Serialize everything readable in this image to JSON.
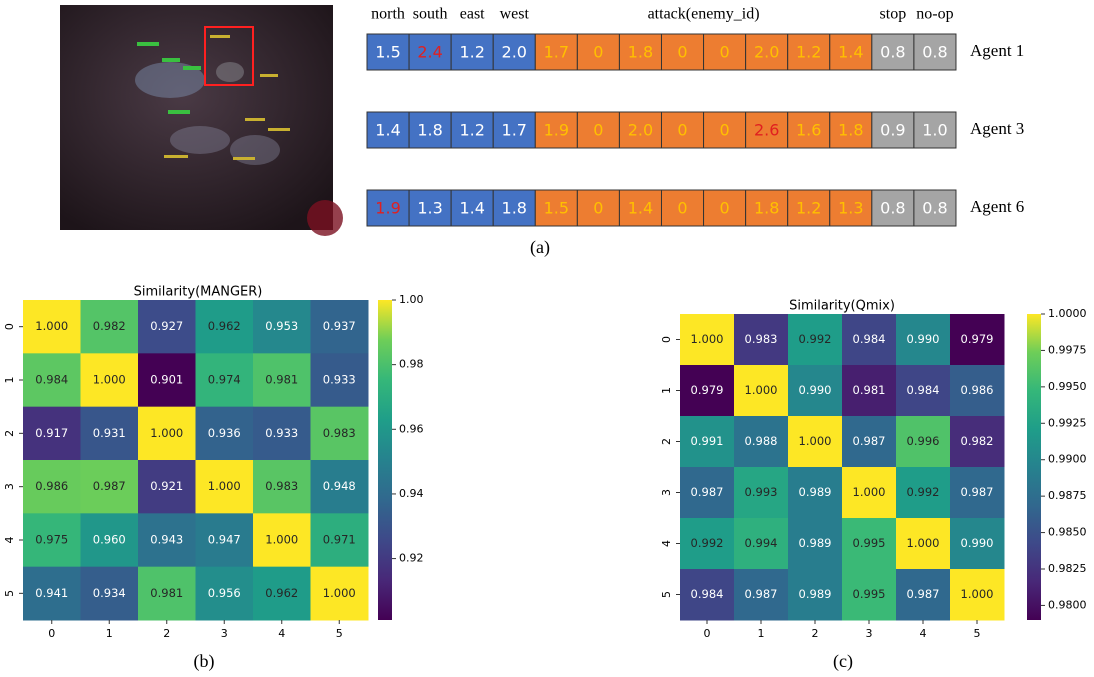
{
  "panel_a": {
    "caption": "(a)",
    "headers": [
      {
        "label": "north",
        "span": 1
      },
      {
        "label": "south",
        "span": 1
      },
      {
        "label": "east",
        "span": 1
      },
      {
        "label": "west",
        "span": 1
      },
      {
        "label": "attack(enemy_id)",
        "span": 8
      },
      {
        "label": "stop",
        "span": 1
      },
      {
        "label": "no-op",
        "span": 1
      }
    ],
    "cell_colors": [
      "#4472c4",
      "#4472c4",
      "#4472c4",
      "#4472c4",
      "#ed7d31",
      "#ed7d31",
      "#ed7d31",
      "#ed7d31",
      "#ed7d31",
      "#ed7d31",
      "#ed7d31",
      "#ed7d31",
      "#a5a5a5",
      "#a5a5a5"
    ],
    "text_colors": [
      "#ffffff",
      "#ffffff",
      "#ffffff",
      "#ffffff",
      "#ffc000",
      "#ffc000",
      "#ffc000",
      "#ffc000",
      "#ffc000",
      "#ffc000",
      "#ffc000",
      "#ffc000",
      "#ffffff",
      "#ffffff"
    ],
    "highlight_color": "#e02020",
    "agents": [
      {
        "name": "Agent 1",
        "highlight": 1,
        "cells": [
          "1.5",
          "2.4",
          "1.2",
          "2.0",
          "1.7",
          "0",
          "1.8",
          "0",
          "0",
          "2.0",
          "1.2",
          "1.4",
          "0.8",
          "0.8"
        ]
      },
      {
        "name": "Agent 3",
        "highlight": 9,
        "cells": [
          "1.4",
          "1.8",
          "1.2",
          "1.7",
          "1.9",
          "0",
          "2.0",
          "0",
          "0",
          "2.6",
          "1.6",
          "1.8",
          "0.9",
          "1.0"
        ]
      },
      {
        "name": "Agent 6",
        "highlight": 0,
        "cells": [
          "1.9",
          "1.3",
          "1.4",
          "1.8",
          "1.5",
          "0",
          "1.4",
          "0",
          "0",
          "1.8",
          "1.2",
          "1.3",
          "0.8",
          "0.8"
        ]
      }
    ]
  },
  "chart_data": [
    {
      "type": "heatmap",
      "title": "Similarity(MANGER)",
      "caption": "(b)",
      "categories": [
        "0",
        "1",
        "2",
        "3",
        "4",
        "5"
      ],
      "colormap": "viridis",
      "clim": [
        0.901,
        1.0
      ],
      "cticks": [
        0.92,
        0.94,
        0.96,
        0.98,
        {
          "value": 1.0,
          "label": "1.00"
        }
      ],
      "values": [
        [
          1.0,
          0.982,
          0.927,
          0.962,
          0.953,
          0.937
        ],
        [
          0.984,
          1.0,
          0.901,
          0.974,
          0.981,
          0.933
        ],
        [
          0.917,
          0.931,
          1.0,
          0.936,
          0.933,
          0.983
        ],
        [
          0.986,
          0.987,
          0.921,
          1.0,
          0.983,
          0.948
        ],
        [
          0.975,
          0.96,
          0.943,
          0.947,
          1.0,
          0.971
        ],
        [
          0.941,
          0.934,
          0.981,
          0.956,
          0.962,
          1.0
        ]
      ],
      "value_labels": [
        [
          "1.000",
          "0.982",
          "0.927",
          "0.962",
          "0.953",
          "0.937"
        ],
        [
          "0.984",
          "1.000",
          "0.901",
          "0.974",
          "0.981",
          "0.933"
        ],
        [
          "0.917",
          "0.931",
          "1.000",
          "0.936",
          "0.933",
          "0.983"
        ],
        [
          "0.986",
          "0.987",
          "0.921",
          "1.000",
          "0.983",
          "0.948"
        ],
        [
          "0.975",
          "0.960",
          "0.943",
          "0.947",
          "1.000",
          "0.971"
        ],
        [
          "0.941",
          "0.934",
          "0.981",
          "0.956",
          "0.962",
          "1.000"
        ]
      ]
    },
    {
      "type": "heatmap",
      "title": "Similarity(Qmix)",
      "caption": "(c)",
      "categories": [
        "0",
        "1",
        "2",
        "3",
        "4",
        "5"
      ],
      "colormap": "viridis",
      "clim": [
        0.979,
        1.0
      ],
      "cticks": [
        {
          "value": 0.98,
          "label": "0.9800"
        },
        {
          "value": 0.9825,
          "label": "0.9825"
        },
        {
          "value": 0.985,
          "label": "0.9850"
        },
        {
          "value": 0.9875,
          "label": "0.9875"
        },
        {
          "value": 0.99,
          "label": "0.9900"
        },
        {
          "value": 0.9925,
          "label": "0.9925"
        },
        {
          "value": 0.995,
          "label": "0.9950"
        },
        {
          "value": 0.9975,
          "label": "0.9975"
        },
        {
          "value": 1.0,
          "label": "1.0000"
        }
      ],
      "values": [
        [
          1.0,
          0.983,
          0.992,
          0.984,
          0.99,
          0.979
        ],
        [
          0.979,
          1.0,
          0.99,
          0.981,
          0.984,
          0.986
        ],
        [
          0.991,
          0.988,
          1.0,
          0.987,
          0.996,
          0.982
        ],
        [
          0.987,
          0.993,
          0.989,
          1.0,
          0.992,
          0.987
        ],
        [
          0.992,
          0.994,
          0.989,
          0.995,
          1.0,
          0.99
        ],
        [
          0.984,
          0.987,
          0.989,
          0.995,
          0.987,
          1.0
        ]
      ],
      "value_labels": [
        [
          "1.000",
          "0.983",
          "0.992",
          "0.984",
          "0.990",
          "0.979"
        ],
        [
          "0.979",
          "1.000",
          "0.990",
          "0.981",
          "0.984",
          "0.986"
        ],
        [
          "0.991",
          "0.988",
          "1.000",
          "0.987",
          "0.996",
          "0.982"
        ],
        [
          "0.987",
          "0.993",
          "0.989",
          "1.000",
          "0.992",
          "0.987"
        ],
        [
          "0.992",
          "0.994",
          "0.989",
          "0.995",
          "1.000",
          "0.990"
        ],
        [
          "0.984",
          "0.987",
          "0.989",
          "0.995",
          "0.987",
          "1.000"
        ]
      ]
    }
  ]
}
